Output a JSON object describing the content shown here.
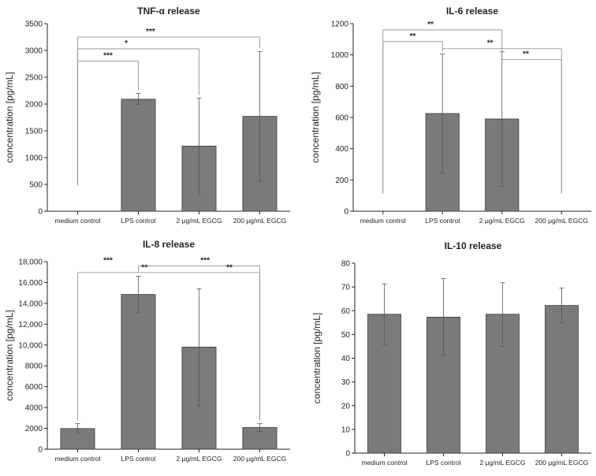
{
  "chart_data": [
    {
      "type": "bar",
      "title": "TNF-α release",
      "xlabel": "",
      "ylabel": "concentration [pg/mL]",
      "categories": [
        "medium control",
        "LPS control",
        "2 μg/mL EGCG",
        "200 μg/mL EGCG"
      ],
      "values": [
        0,
        2090,
        1215,
        1770
      ],
      "error_low": [
        null,
        1990,
        320,
        560
      ],
      "error_high": [
        null,
        2200,
        2110,
        2980
      ],
      "whisker_lines_only": [
        0
      ],
      "whisker_low_only": [
        480
      ],
      "ylim": [
        0,
        3500
      ],
      "yticks": [
        0,
        500,
        1000,
        1500,
        2000,
        2500,
        3000,
        3500
      ],
      "ytick_labels": [
        "0",
        "500",
        "1000",
        "1500",
        "2000",
        "2500",
        "3000",
        "3500"
      ],
      "brackets": [
        {
          "from": 0,
          "to": 1,
          "y": 2800,
          "label": "***"
        },
        {
          "from": 0,
          "to": 2,
          "y": 3030,
          "label": "*"
        },
        {
          "from": 0,
          "to": 3,
          "y": 3250,
          "label": "***"
        }
      ]
    },
    {
      "type": "bar",
      "title": "IL-6 release",
      "xlabel": "",
      "ylabel": "concentration [pg/mL]",
      "categories": [
        "medium control",
        "LPS control",
        "2 μg/mL EGCG",
        "200 μg/mL EGCG"
      ],
      "values": [
        0,
        625,
        590,
        0
      ],
      "error_low": [
        null,
        245,
        160,
        null
      ],
      "error_high": [
        null,
        1005,
        1020,
        null
      ],
      "whisker_low_only": [
        115,
        null,
        null,
        115
      ],
      "ylim": [
        0,
        1200
      ],
      "yticks": [
        0,
        200,
        400,
        600,
        800,
        1000,
        1200
      ],
      "ytick_labels": [
        "0",
        "200",
        "400",
        "600",
        "800",
        "1000",
        "1200"
      ],
      "brackets": [
        {
          "from": 0,
          "to": 1,
          "y": 1085,
          "label": "**"
        },
        {
          "from": 0,
          "to": 2,
          "y": 1160,
          "label": "**"
        },
        {
          "from": 1,
          "to": 3,
          "y": 1040,
          "label": "**"
        },
        {
          "from": 2,
          "to": 3,
          "y": 970,
          "label": "**"
        }
      ]
    },
    {
      "type": "bar",
      "title": "IL-8 release",
      "xlabel": "",
      "ylabel": "concentration [pg/mL]",
      "categories": [
        "medium control",
        "LPS control",
        "2 μg/mL EGCG",
        "200 μg/mL EGCG"
      ],
      "values": [
        1980,
        14850,
        9800,
        2080
      ],
      "error_low": [
        1520,
        13150,
        4150,
        1700
      ],
      "error_high": [
        2450,
        16600,
        15400,
        2450
      ],
      "ylim": [
        0,
        18000
      ],
      "yticks": [
        0,
        2000,
        4000,
        6000,
        8000,
        10000,
        12000,
        14000,
        16000,
        18000
      ],
      "ytick_labels": [
        "0",
        "2000",
        "4000",
        "6000",
        "8000",
        "10,000",
        "12,000",
        "14,000",
        "16,000",
        "18,000"
      ],
      "brackets": [
        {
          "from": 1,
          "to": 3,
          "y": 17600,
          "label": "***"
        },
        {
          "from": 0,
          "to": 3,
          "y": 16950,
          "label": "**"
        }
      ],
      "bracket_labels": [
        {
          "text": "***",
          "x": 0.5,
          "y": 17950
        },
        {
          "text": "***",
          "x": 2.1,
          "y": 17950
        },
        {
          "text": "**",
          "x": 1.1,
          "y": 17300
        },
        {
          "text": "**",
          "x": 2.5,
          "y": 17300
        }
      ]
    },
    {
      "type": "bar",
      "title": "IL-10 release",
      "xlabel": "",
      "ylabel": "concentration [pg/mL]",
      "categories": [
        "medium control",
        "LPS control",
        "2 μg/mL EGCG",
        "200 μg/mL EGCG"
      ],
      "values": [
        58.5,
        57.3,
        58.5,
        62.2
      ],
      "error_low": [
        45.8,
        41.2,
        45.0,
        55.0
      ],
      "error_high": [
        71.3,
        73.5,
        71.8,
        69.6
      ],
      "ylim": [
        0,
        80
      ],
      "yticks": [
        0,
        10,
        20,
        30,
        40,
        50,
        60,
        70,
        80
      ],
      "ytick_labels": [
        "0",
        "10",
        "20",
        "30",
        "40",
        "50",
        "60",
        "70",
        "80"
      ],
      "brackets": []
    }
  ],
  "colors": {
    "bar": "#7a7a7a",
    "bar_edge": "#3a3a3a",
    "axis": "#222222",
    "bracket": "#888888",
    "whisker": "#555555"
  }
}
